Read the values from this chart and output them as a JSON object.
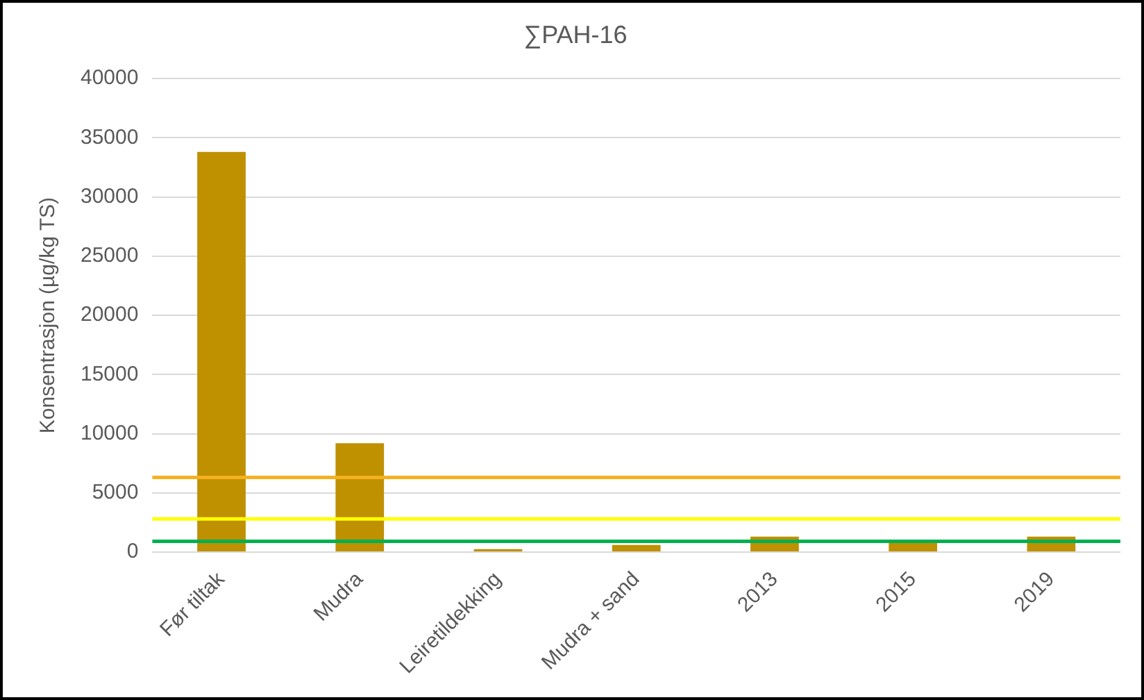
{
  "chart_data": {
    "type": "bar",
    "title": "∑PAH-16",
    "ylabel": "Konsentrasjon (µg/kg TS)",
    "categories": [
      "Før tiltak",
      "Mudra",
      "Leiretildekking",
      "Mudra + sand",
      "2013",
      "2015",
      "2019"
    ],
    "values": [
      33800,
      9200,
      250,
      600,
      1300,
      900,
      1300
    ],
    "color": "#bf9000",
    "ylim": [
      0,
      40000
    ],
    "yticks": [
      0,
      5000,
      10000,
      15000,
      20000,
      25000,
      30000,
      35000,
      40000
    ],
    "grid": "y",
    "legend": false,
    "ref_lines": [
      {
        "axis": "y",
        "value": 6300,
        "color": "#f5b120"
      },
      {
        "axis": "y",
        "value": 2800,
        "color": "#ffff00"
      },
      {
        "axis": "y",
        "value": 900,
        "color": "#00b050"
      }
    ]
  }
}
